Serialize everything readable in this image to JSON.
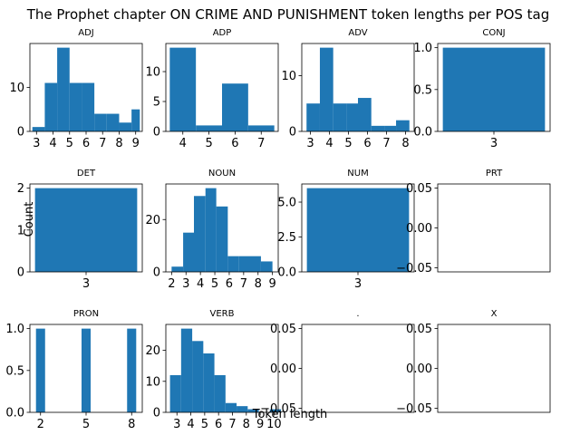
{
  "title": "The Prophet chapter ON CRIME AND PUNISHMENT token lengths per POS tag",
  "xlabel": "Token length",
  "ylabel": "Count",
  "bar_color": "#1f77b4",
  "chart_data": [
    {
      "type": "bar",
      "title": "ADJ",
      "xticks": [
        3,
        4,
        5,
        6,
        7,
        8,
        9
      ],
      "yticks": [
        0,
        10
      ],
      "xlim": [
        2.6,
        9.4
      ],
      "ylim": [
        0,
        19.95
      ],
      "bins": [
        [
          2.75,
          3.5,
          1
        ],
        [
          3.5,
          4.25,
          11
        ],
        [
          4.25,
          5.0,
          19
        ],
        [
          5.0,
          5.75,
          11
        ],
        [
          5.75,
          6.5,
          11
        ],
        [
          6.5,
          7.25,
          4
        ],
        [
          7.25,
          8.0,
          4
        ],
        [
          8.0,
          8.75,
          2
        ],
        [
          8.75,
          9.25,
          5
        ]
      ]
    },
    {
      "type": "bar",
      "title": "ADP",
      "xticks": [
        4,
        5,
        6,
        7
      ],
      "yticks": [
        0,
        5,
        10
      ],
      "xlim": [
        3.35,
        7.65
      ],
      "ylim": [
        0,
        14.7
      ],
      "bins": [
        [
          3.5,
          4.5,
          14
        ],
        [
          4.5,
          5.5,
          1
        ],
        [
          5.5,
          6.5,
          8
        ],
        [
          6.5,
          7.5,
          1
        ]
      ]
    },
    {
      "type": "bar",
      "title": "ADV",
      "xticks": [
        3,
        4,
        5,
        6,
        7,
        8
      ],
      "yticks": [
        0,
        10
      ],
      "xlim": [
        2.55,
        8.45
      ],
      "ylim": [
        0,
        15.75
      ],
      "bins": [
        [
          2.8,
          3.5,
          5
        ],
        [
          3.5,
          4.2,
          15
        ],
        [
          4.2,
          4.9,
          5
        ],
        [
          4.9,
          5.5,
          5
        ],
        [
          5.5,
          6.2,
          6
        ],
        [
          6.2,
          6.9,
          1
        ],
        [
          6.9,
          7.5,
          1
        ],
        [
          7.5,
          8.2,
          2
        ]
      ]
    },
    {
      "type": "bar",
      "title": "CONJ",
      "xticks": [
        3
      ],
      "yticks": [
        0.0,
        0.5,
        1.0
      ],
      "ylabels": [
        "0.0",
        "0.5",
        "1.0"
      ],
      "xlim": [
        2.45,
        3.55
      ],
      "ylim": [
        0,
        1.05
      ],
      "bins": [
        [
          2.5,
          3.5,
          1
        ]
      ]
    },
    {
      "type": "bar",
      "title": "DET",
      "xticks": [
        3
      ],
      "yticks": [
        0,
        1,
        2
      ],
      "xlim": [
        2.45,
        3.55
      ],
      "ylim": [
        0,
        2.1
      ],
      "bins": [
        [
          2.5,
          3.5,
          2
        ]
      ]
    },
    {
      "type": "bar",
      "title": "NOUN",
      "xticks": [
        2,
        3,
        4,
        5,
        6,
        7,
        8,
        9
      ],
      "yticks": [
        0,
        20
      ],
      "xlim": [
        1.6,
        9.4
      ],
      "ylim": [
        0,
        33.6
      ],
      "bins": [
        [
          2.0,
          2.8,
          2
        ],
        [
          2.8,
          3.55,
          15
        ],
        [
          3.55,
          4.35,
          29
        ],
        [
          4.35,
          5.1,
          32
        ],
        [
          5.1,
          5.9,
          25
        ],
        [
          5.9,
          6.65,
          6
        ],
        [
          6.65,
          7.45,
          6
        ],
        [
          7.45,
          8.2,
          6
        ],
        [
          8.2,
          9.0,
          4
        ]
      ]
    },
    {
      "type": "bar",
      "title": "NUM",
      "xticks": [
        3
      ],
      "yticks": [
        0.0,
        2.5,
        5.0
      ],
      "ylabels": [
        "0.0",
        "2.5",
        "5.0"
      ],
      "xlim": [
        2.45,
        3.55
      ],
      "ylim": [
        0,
        6.3
      ],
      "bins": [
        [
          2.5,
          3.5,
          6
        ]
      ]
    },
    {
      "type": "bar",
      "title": "PRT",
      "xticks": [],
      "yticks": [
        -0.05,
        0.0,
        0.05
      ],
      "ylabels": [
        "−0.05",
        "0.00",
        "0.05"
      ],
      "xlim": [
        0,
        1
      ],
      "ylim": [
        -0.055,
        0.055
      ],
      "bins": []
    },
    {
      "type": "bar",
      "title": "PRON",
      "xticks": [
        2,
        5,
        8
      ],
      "yticks": [
        0.0,
        0.5,
        1.0
      ],
      "ylabels": [
        "0.0",
        "0.5",
        "1.0"
      ],
      "xlim": [
        1.3,
        8.7
      ],
      "ylim": [
        0,
        1.05
      ],
      "bins": [
        [
          1.7,
          2.3,
          1
        ],
        [
          4.7,
          5.3,
          1
        ],
        [
          7.7,
          8.3,
          1
        ]
      ]
    },
    {
      "type": "bar",
      "title": "VERB",
      "xticks": [
        3,
        4,
        5,
        6,
        7,
        8,
        9,
        10
      ],
      "yticks": [
        0,
        10,
        20
      ],
      "xlim": [
        2.2,
        10.3
      ],
      "ylim": [
        0,
        28.35
      ],
      "bins": [
        [
          2.5,
          3.3,
          12
        ],
        [
          3.3,
          4.1,
          27
        ],
        [
          4.1,
          4.9,
          23
        ],
        [
          4.9,
          5.7,
          19
        ],
        [
          5.7,
          6.5,
          12
        ],
        [
          6.5,
          7.3,
          3
        ],
        [
          7.3,
          8.1,
          2
        ],
        [
          8.1,
          8.9,
          1
        ],
        [
          8.9,
          9.7,
          0
        ],
        [
          9.7,
          10.5,
          1
        ]
      ]
    },
    {
      "type": "bar",
      "title": ".",
      "xticks": [],
      "yticks": [
        -0.05,
        0.0,
        0.05
      ],
      "ylabels": [
        "−0.05",
        "0.00",
        "0.05"
      ],
      "xlim": [
        0,
        1
      ],
      "ylim": [
        -0.055,
        0.055
      ],
      "bins": []
    },
    {
      "type": "bar",
      "title": "X",
      "xticks": [],
      "yticks": [
        -0.05,
        0.0,
        0.05
      ],
      "ylabels": [
        "−0.05",
        "0.00",
        "0.05"
      ],
      "xlim": [
        0,
        1
      ],
      "ylim": [
        -0.055,
        0.055
      ],
      "bins": []
    }
  ]
}
